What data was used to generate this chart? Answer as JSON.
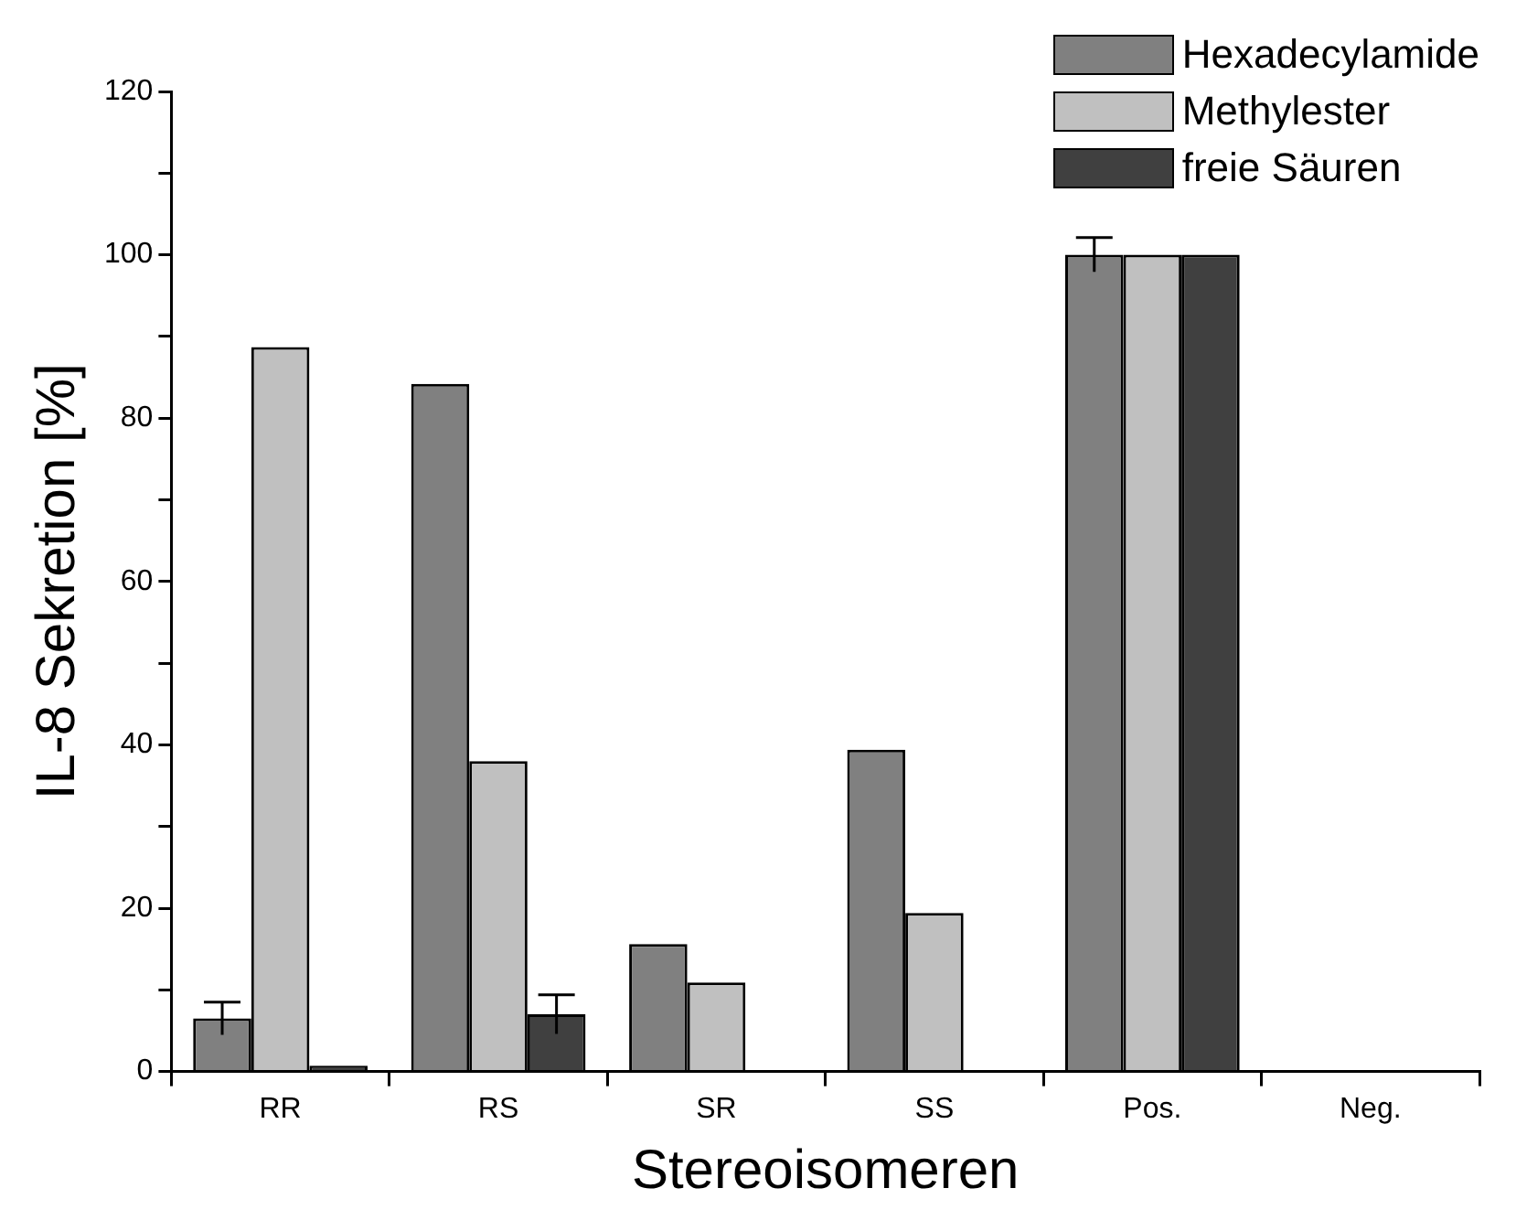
{
  "chart_data": {
    "type": "bar",
    "xlabel": "Stereoisomeren",
    "ylabel": "IL-8 Sekretion [%]",
    "categories": [
      "RR",
      "RS",
      "SR",
      "SS",
      "Pos.",
      "Neg."
    ],
    "series": [
      {
        "name": "Hexadecylamide",
        "color": "#808080",
        "values": [
          6.5,
          84.2,
          15.6,
          39.4,
          100,
          0
        ],
        "errors": [
          2,
          null,
          null,
          null,
          2.1,
          null
        ]
      },
      {
        "name": "Methylester",
        "color": "#c0c0c0",
        "values": [
          88.7,
          38,
          10.9,
          19.4,
          100,
          0
        ]
      },
      {
        "name": "freie Säuren",
        "color": "#404040",
        "values": [
          0.7,
          7,
          null,
          null,
          100,
          0
        ],
        "errors": [
          null,
          2.4,
          null,
          null,
          null,
          null
        ]
      }
    ],
    "ylim": [
      0,
      120
    ],
    "yticks": [
      0,
      {
        "value": 10,
        "label": null
      },
      20,
      {
        "value": 30,
        "label": null
      },
      40,
      {
        "value": 50,
        "label": null
      },
      60,
      {
        "value": 70,
        "label": null
      },
      80,
      {
        "value": 90,
        "label": null
      },
      100,
      {
        "value": 110,
        "label": null
      },
      120
    ],
    "grid": false,
    "legend": "top right"
  }
}
